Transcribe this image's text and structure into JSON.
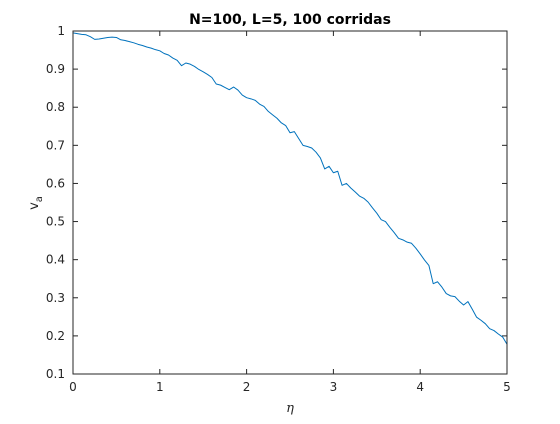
{
  "chart_data": {
    "type": "line",
    "title": "N=100, L=5, 100 corridas",
    "xlabel": "η",
    "ylabel_main": "v",
    "ylabel_sub": "a",
    "xlim": [
      0,
      5
    ],
    "ylim": [
      0.1,
      1.0
    ],
    "xticks": [
      0,
      1,
      2,
      3,
      4,
      5
    ],
    "xtick_labels": [
      "0",
      "1",
      "2",
      "3",
      "4",
      "5"
    ],
    "yticks": [
      0.1,
      0.2,
      0.3,
      0.4,
      0.5,
      0.6,
      0.7,
      0.8,
      0.9,
      1.0
    ],
    "ytick_labels": [
      "0.1",
      "0.2",
      "0.3",
      "0.4",
      "0.5",
      "0.6",
      "0.7",
      "0.8",
      "0.9",
      "1"
    ],
    "grid": false,
    "box": true,
    "series": [
      {
        "color": "#0072BD",
        "x": [
          0,
          0.05,
          0.1,
          0.15,
          0.2,
          0.25,
          0.3,
          0.35,
          0.4,
          0.45,
          0.5,
          0.55,
          0.6,
          0.65,
          0.7,
          0.75,
          0.8,
          0.85,
          0.9,
          0.95,
          1.0,
          1.05,
          1.1,
          1.15,
          1.2,
          1.25,
          1.3,
          1.35,
          1.4,
          1.45,
          1.5,
          1.55,
          1.6,
          1.65,
          1.7,
          1.75,
          1.8,
          1.85,
          1.9,
          1.95,
          2.0,
          2.05,
          2.1,
          2.15,
          2.2,
          2.25,
          2.3,
          2.35,
          2.4,
          2.45,
          2.5,
          2.55,
          2.6,
          2.65,
          2.7,
          2.75,
          2.8,
          2.85,
          2.9,
          2.95,
          3.0,
          3.05,
          3.1,
          3.15,
          3.2,
          3.25,
          3.3,
          3.35,
          3.4,
          3.45,
          3.5,
          3.55,
          3.6,
          3.65,
          3.7,
          3.75,
          3.8,
          3.85,
          3.9,
          3.95,
          4.0,
          4.05,
          4.1,
          4.15,
          4.2,
          4.25,
          4.3,
          4.35,
          4.4,
          4.45,
          4.5,
          4.55,
          4.6,
          4.65,
          4.7,
          4.75,
          4.8,
          4.85,
          4.9,
          4.95,
          5.0
        ],
        "y": [
          0.995,
          0.993,
          0.991,
          0.99,
          0.985,
          0.978,
          0.979,
          0.981,
          0.983,
          0.984,
          0.983,
          0.977,
          0.975,
          0.972,
          0.969,
          0.965,
          0.962,
          0.958,
          0.955,
          0.951,
          0.948,
          0.941,
          0.937,
          0.929,
          0.923,
          0.909,
          0.916,
          0.913,
          0.907,
          0.899,
          0.893,
          0.886,
          0.878,
          0.861,
          0.858,
          0.852,
          0.846,
          0.853,
          0.845,
          0.832,
          0.825,
          0.822,
          0.818,
          0.808,
          0.802,
          0.789,
          0.78,
          0.771,
          0.759,
          0.752,
          0.733,
          0.736,
          0.718,
          0.7,
          0.697,
          0.693,
          0.682,
          0.667,
          0.638,
          0.645,
          0.628,
          0.632,
          0.595,
          0.6,
          0.588,
          0.578,
          0.567,
          0.561,
          0.551,
          0.536,
          0.522,
          0.505,
          0.5,
          0.485,
          0.471,
          0.456,
          0.452,
          0.446,
          0.443,
          0.43,
          0.415,
          0.399,
          0.385,
          0.337,
          0.342,
          0.328,
          0.311,
          0.305,
          0.303,
          0.291,
          0.281,
          0.29,
          0.27,
          0.249,
          0.241,
          0.232,
          0.219,
          0.214,
          0.205,
          0.197,
          0.178
        ]
      }
    ]
  }
}
